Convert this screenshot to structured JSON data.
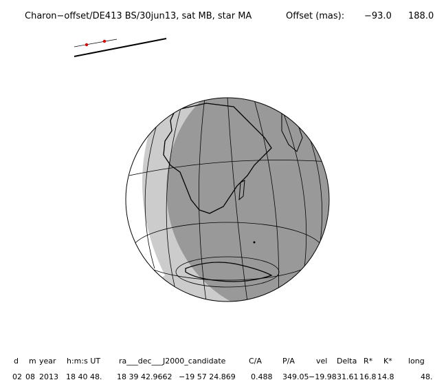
{
  "header": {
    "title": "Charon−offset/DE413 BS/30jun13, sat MB, star MA",
    "offset_label": "Offset (mas):",
    "offset_x": "−93.0",
    "offset_y": "188.0"
  },
  "table": {
    "columns": [
      "d",
      "m",
      "year",
      "h:m:s UT",
      "ra___dec___J2000_candidate",
      "C/A",
      "P/A",
      "vel",
      "Delta",
      "R*",
      "K*",
      "long"
    ],
    "row": [
      "02",
      "08",
      "2013",
      "18 40 48.",
      "18 39 42.9662",
      "−19 57  24.869",
      "0.488",
      "349.05",
      "−19.98",
      "31.61",
      "16.8",
      "14.8",
      "48."
    ]
  }
}
